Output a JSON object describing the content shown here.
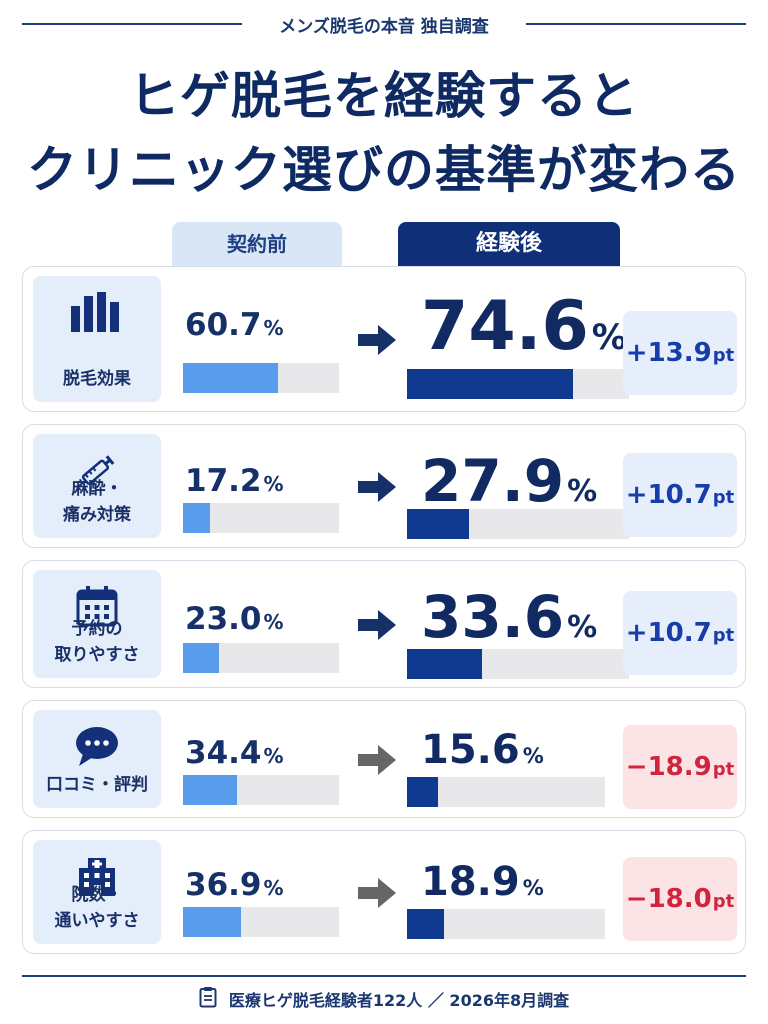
{
  "header": {
    "eyebrow": "メンズ脱毛の本音 独自調査",
    "title_line1": "ヒゲ脱毛を経験すると",
    "title_line2": "クリニック選びの基準が変わる"
  },
  "columns": {
    "before": "契約前",
    "after": "経験後"
  },
  "pct_unit": "%",
  "pt_unit": "pt",
  "chart_data": {
    "type": "bar",
    "title": "ヒゲ脱毛を経験するとクリニック選びの基準が変わる",
    "series": [
      {
        "name": "契約前",
        "values": [
          60.7,
          17.2,
          23.0,
          34.4,
          36.9
        ]
      },
      {
        "name": "経験後",
        "values": [
          74.6,
          27.9,
          33.6,
          15.6,
          18.9
        ]
      }
    ],
    "ylim": [
      0,
      100
    ],
    "rows": [
      {
        "category_lines": [
          "脱毛効果"
        ],
        "icon": "bar-chart-icon",
        "before": "60.7",
        "after": "74.6",
        "diff": "+13.9",
        "trend": "up"
      },
      {
        "category_lines": [
          "麻酔・",
          "痛み対策"
        ],
        "icon": "syringe-icon",
        "before": "17.2",
        "after": "27.9",
        "diff": "+10.7",
        "trend": "up"
      },
      {
        "category_lines": [
          "予約の",
          "取りやすさ"
        ],
        "icon": "calendar-icon",
        "before": "23.0",
        "after": "33.6",
        "diff": "+10.7",
        "trend": "up"
      },
      {
        "category_lines": [
          "口コミ・評判"
        ],
        "icon": "chat-bubble-icon",
        "before": "34.4",
        "after": "15.6",
        "diff": "−18.9",
        "trend": "down"
      },
      {
        "category_lines": [
          "院数・",
          "通いやすさ"
        ],
        "icon": "building-icon",
        "before": "36.9",
        "after": "18.9",
        "diff": "−18.0",
        "trend": "down"
      }
    ]
  },
  "colors": {
    "navy": "#0f3078",
    "light_blue": "#5a9cec",
    "up_text": "#173ea8",
    "down_text": "#d0253c",
    "up_arrow": "#163068",
    "down_arrow": "#666666"
  },
  "footer": {
    "icon": "clipboard-icon",
    "text": "医療ヒゲ脱毛経験者122人 ／ 2026年8月調査"
  }
}
